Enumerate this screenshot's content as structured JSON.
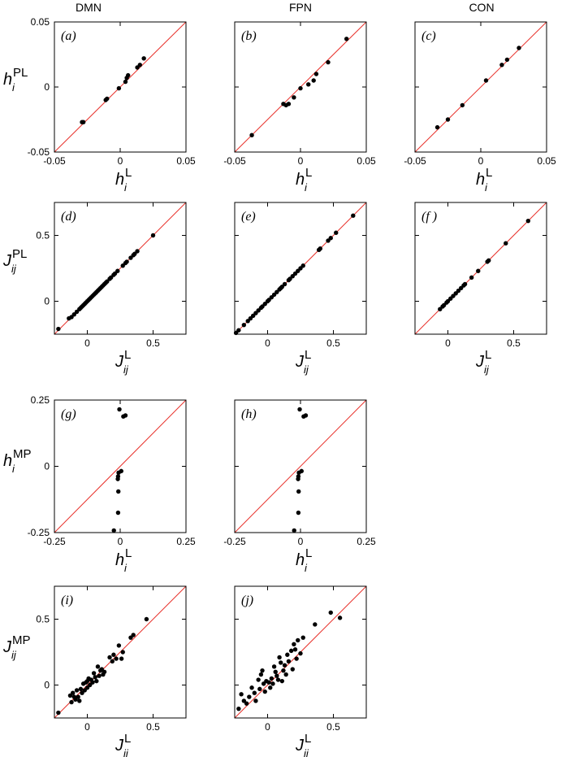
{
  "columns": [
    "DMN",
    "FPN",
    "CON"
  ],
  "axis_labels": {
    "h_L": {
      "base": "h",
      "sub": "i",
      "sup": "L"
    },
    "J_L": {
      "base": "J",
      "sub": "ij",
      "sup": "L"
    },
    "h_PL": {
      "base": "h",
      "sub": "i",
      "sup": "PL"
    },
    "J_PL": {
      "base": "J",
      "sub": "ij",
      "sup": "PL"
    },
    "h_MP": {
      "base": "h",
      "sub": "i",
      "sup": "MP"
    },
    "J_MP": {
      "base": "J",
      "sub": "ij",
      "sup": "MP"
    }
  },
  "colors": {
    "identity_line": "#e8302a",
    "points": "#000000",
    "frame": "#000000"
  },
  "chart_data": [
    {
      "id": "a",
      "panel_label": "(a)",
      "type": "scatter",
      "column": "DMN",
      "xlim": [
        -0.05,
        0.05
      ],
      "ylim": [
        -0.05,
        0.05
      ],
      "xticks": [
        -0.05,
        0,
        0.05
      ],
      "xtick_labels": [
        "-0.05",
        "0",
        "0.05"
      ],
      "yticks": [
        -0.05,
        0,
        0.05
      ],
      "ytick_labels": [
        "-0.05",
        "0",
        "0.05"
      ],
      "xlabel": "h_L",
      "ylabel": "h_PL",
      "show_xticks": true,
      "show_yticks": true,
      "identity_line": true,
      "points": [
        [
          -0.029,
          -0.027
        ],
        [
          -0.028,
          -0.027
        ],
        [
          -0.011,
          -0.01
        ],
        [
          -0.01,
          -0.009
        ],
        [
          -0.001,
          -0.001
        ],
        [
          0.004,
          0.004
        ],
        [
          0.005,
          0.007
        ],
        [
          0.006,
          0.009
        ],
        [
          0.013,
          0.015
        ],
        [
          0.015,
          0.017
        ],
        [
          0.018,
          0.022
        ]
      ]
    },
    {
      "id": "b",
      "panel_label": "(b)",
      "type": "scatter",
      "column": "FPN",
      "xlim": [
        -0.05,
        0.05
      ],
      "ylim": [
        -0.05,
        0.05
      ],
      "xticks": [
        -0.05,
        0,
        0.05
      ],
      "xtick_labels": [
        "-0.05",
        "0",
        "0.05"
      ],
      "xlabel": "h_L",
      "show_xticks": true,
      "show_yticks": false,
      "identity_line": true,
      "points": [
        [
          -0.037,
          -0.037
        ],
        [
          -0.013,
          -0.013
        ],
        [
          -0.011,
          -0.014
        ],
        [
          -0.009,
          -0.013
        ],
        [
          -0.005,
          -0.008
        ],
        [
          0.0,
          -0.001
        ],
        [
          0.006,
          0.002
        ],
        [
          0.01,
          0.005
        ],
        [
          0.012,
          0.01
        ],
        [
          0.021,
          0.019
        ],
        [
          0.035,
          0.037
        ]
      ]
    },
    {
      "id": "c",
      "panel_label": "(c)",
      "type": "scatter",
      "column": "CON",
      "xlim": [
        -0.05,
        0.05
      ],
      "ylim": [
        -0.05,
        0.05
      ],
      "xticks": [
        -0.05,
        0,
        0.05
      ],
      "xtick_labels": [
        "-0.05",
        "0",
        "0.05"
      ],
      "xlabel": "h_L",
      "show_xticks": true,
      "show_yticks": false,
      "identity_line": true,
      "points": [
        [
          -0.033,
          -0.031
        ],
        [
          -0.025,
          -0.025
        ],
        [
          -0.014,
          -0.014
        ],
        [
          0.004,
          0.005
        ],
        [
          0.016,
          0.017
        ],
        [
          0.02,
          0.021
        ],
        [
          0.029,
          0.03
        ]
      ]
    },
    {
      "id": "d",
      "panel_label": "(d)",
      "type": "scatter",
      "column": "DMN",
      "xlim": [
        -0.25,
        0.75
      ],
      "ylim": [
        -0.25,
        0.75
      ],
      "xticks": [
        0,
        0.5
      ],
      "xtick_labels": [
        "0",
        "0.5"
      ],
      "yticks": [
        0,
        0.5
      ],
      "ytick_labels": [
        "0",
        "0.5"
      ],
      "xlabel": "J_L",
      "ylabel": "J_PL",
      "show_xticks": true,
      "show_yticks": true,
      "identity_line": true,
      "points": [
        [
          -0.22,
          -0.21
        ],
        [
          -0.14,
          -0.13
        ],
        [
          -0.12,
          -0.12
        ],
        [
          -0.1,
          -0.1
        ],
        [
          -0.08,
          -0.08
        ],
        [
          -0.06,
          -0.06
        ],
        [
          -0.05,
          -0.05
        ],
        [
          -0.04,
          -0.04
        ],
        [
          -0.03,
          -0.03
        ],
        [
          -0.02,
          -0.02
        ],
        [
          -0.01,
          -0.01
        ],
        [
          0.0,
          0.0
        ],
        [
          0.01,
          0.01
        ],
        [
          0.02,
          0.02
        ],
        [
          0.03,
          0.03
        ],
        [
          0.04,
          0.04
        ],
        [
          0.05,
          0.05
        ],
        [
          0.06,
          0.06
        ],
        [
          0.07,
          0.07
        ],
        [
          0.08,
          0.08
        ],
        [
          0.09,
          0.09
        ],
        [
          0.1,
          0.1
        ],
        [
          0.11,
          0.11
        ],
        [
          0.12,
          0.12
        ],
        [
          0.13,
          0.13
        ],
        [
          0.14,
          0.14
        ],
        [
          0.15,
          0.15
        ],
        [
          0.17,
          0.17
        ],
        [
          0.18,
          0.18
        ],
        [
          0.2,
          0.2
        ],
        [
          0.21,
          0.21
        ],
        [
          0.23,
          0.23
        ],
        [
          0.27,
          0.27
        ],
        [
          0.29,
          0.29
        ],
        [
          0.3,
          0.3
        ],
        [
          0.33,
          0.33
        ],
        [
          0.35,
          0.35
        ],
        [
          0.36,
          0.36
        ],
        [
          0.38,
          0.38
        ],
        [
          0.5,
          0.5
        ]
      ]
    },
    {
      "id": "e",
      "panel_label": "(e)",
      "type": "scatter",
      "column": "FPN",
      "xlim": [
        -0.25,
        0.75
      ],
      "ylim": [
        -0.25,
        0.75
      ],
      "xticks": [
        0,
        0.5
      ],
      "xtick_labels": [
        "0",
        "0.5"
      ],
      "xlabel": "J_L",
      "show_xticks": true,
      "show_yticks": false,
      "identity_line": true,
      "points": [
        [
          -0.24,
          -0.24
        ],
        [
          -0.22,
          -0.22
        ],
        [
          -0.18,
          -0.18
        ],
        [
          -0.15,
          -0.15
        ],
        [
          -0.13,
          -0.13
        ],
        [
          -0.11,
          -0.11
        ],
        [
          -0.09,
          -0.09
        ],
        [
          -0.07,
          -0.07
        ],
        [
          -0.05,
          -0.05
        ],
        [
          -0.04,
          -0.04
        ],
        [
          -0.02,
          -0.02
        ],
        [
          0.0,
          0.0
        ],
        [
          0.01,
          0.01
        ],
        [
          0.03,
          0.03
        ],
        [
          0.05,
          0.05
        ],
        [
          0.07,
          0.07
        ],
        [
          0.09,
          0.09
        ],
        [
          0.1,
          0.1
        ],
        [
          0.11,
          0.11
        ],
        [
          0.13,
          0.13
        ],
        [
          0.16,
          0.16
        ],
        [
          0.17,
          0.17
        ],
        [
          0.19,
          0.19
        ],
        [
          0.21,
          0.21
        ],
        [
          0.23,
          0.23
        ],
        [
          0.25,
          0.25
        ],
        [
          0.27,
          0.27
        ],
        [
          0.39,
          0.39
        ],
        [
          0.4,
          0.4
        ],
        [
          0.46,
          0.46
        ],
        [
          0.48,
          0.48
        ],
        [
          0.52,
          0.52
        ],
        [
          0.65,
          0.65
        ]
      ]
    },
    {
      "id": "f",
      "panel_label": "(f )",
      "type": "scatter",
      "column": "CON",
      "xlim": [
        -0.25,
        0.75
      ],
      "ylim": [
        -0.25,
        0.75
      ],
      "xticks": [
        0,
        0.5
      ],
      "xtick_labels": [
        "0",
        "0.5"
      ],
      "xlabel": "J_L",
      "show_xticks": true,
      "show_yticks": false,
      "identity_line": true,
      "points": [
        [
          -0.06,
          -0.06
        ],
        [
          -0.04,
          -0.04
        ],
        [
          -0.03,
          -0.03
        ],
        [
          -0.01,
          -0.01
        ],
        [
          0.0,
          0.0
        ],
        [
          0.02,
          0.02
        ],
        [
          0.04,
          0.04
        ],
        [
          0.06,
          0.06
        ],
        [
          0.08,
          0.08
        ],
        [
          0.1,
          0.1
        ],
        [
          0.12,
          0.12
        ],
        [
          0.13,
          0.13
        ],
        [
          0.18,
          0.18
        ],
        [
          0.23,
          0.23
        ],
        [
          0.3,
          0.3
        ],
        [
          0.31,
          0.31
        ],
        [
          0.44,
          0.44
        ],
        [
          0.61,
          0.61
        ]
      ]
    },
    {
      "id": "g",
      "panel_label": "(g)",
      "type": "scatter",
      "column": "DMN",
      "xlim": [
        -0.25,
        0.25
      ],
      "ylim": [
        -0.25,
        0.25
      ],
      "xticks": [
        -0.25,
        0,
        0.25
      ],
      "xtick_labels": [
        "-0.25",
        "0",
        "0.25"
      ],
      "yticks": [
        -0.25,
        0,
        0.25
      ],
      "ytick_labels": [
        "-0.25",
        "0",
        "0.25"
      ],
      "xlabel": "h_L",
      "ylabel": "h_MP",
      "show_xticks": true,
      "show_yticks": true,
      "identity_line": true,
      "points": [
        [
          -0.003,
          0.215
        ],
        [
          0.012,
          0.188
        ],
        [
          0.02,
          0.192
        ],
        [
          -0.006,
          -0.024
        ],
        [
          0.004,
          -0.018
        ],
        [
          -0.008,
          -0.038
        ],
        [
          -0.009,
          -0.048
        ],
        [
          -0.007,
          -0.095
        ],
        [
          -0.008,
          -0.175
        ],
        [
          -0.024,
          -0.242
        ]
      ]
    },
    {
      "id": "h",
      "panel_label": "(h)",
      "type": "scatter",
      "column": "FPN",
      "xlim": [
        -0.25,
        0.25
      ],
      "ylim": [
        -0.25,
        0.25
      ],
      "xticks": [
        -0.25,
        0,
        0.25
      ],
      "xtick_labels": [
        "-0.25",
        "0",
        "0.25"
      ],
      "xlabel": "h_L",
      "show_xticks": true,
      "show_yticks": false,
      "identity_line": true,
      "points": [
        [
          -0.003,
          0.215
        ],
        [
          0.012,
          0.188
        ],
        [
          0.02,
          0.192
        ],
        [
          -0.006,
          -0.024
        ],
        [
          0.004,
          -0.018
        ],
        [
          -0.008,
          -0.038
        ],
        [
          -0.009,
          -0.048
        ],
        [
          -0.007,
          -0.095
        ],
        [
          -0.008,
          -0.175
        ],
        [
          -0.024,
          -0.242
        ]
      ]
    },
    {
      "id": "i",
      "panel_label": "(i)",
      "type": "scatter",
      "column": "DMN",
      "xlim": [
        -0.25,
        0.75
      ],
      "ylim": [
        -0.25,
        0.75
      ],
      "xticks": [
        0,
        0.5
      ],
      "xtick_labels": [
        "0",
        "0.5"
      ],
      "yticks": [
        0,
        0.5
      ],
      "ytick_labels": [
        "0",
        "0.5"
      ],
      "xlabel": "J_L",
      "ylabel": "J_MP",
      "show_xticks": true,
      "show_yticks": true,
      "identity_line": true,
      "points": [
        [
          -0.22,
          -0.21
        ],
        [
          -0.13,
          -0.08
        ],
        [
          -0.12,
          -0.13
        ],
        [
          -0.11,
          -0.06
        ],
        [
          -0.1,
          -0.09
        ],
        [
          -0.09,
          -0.11
        ],
        [
          -0.08,
          -0.04
        ],
        [
          -0.07,
          -0.09
        ],
        [
          -0.06,
          -0.12
        ],
        [
          -0.05,
          -0.03
        ],
        [
          -0.04,
          -0.06
        ],
        [
          -0.03,
          0.01
        ],
        [
          -0.02,
          -0.04
        ],
        [
          -0.01,
          0.02
        ],
        [
          0.0,
          0.03
        ],
        [
          0.0,
          -0.02
        ],
        [
          0.01,
          0.05
        ],
        [
          0.02,
          0.0
        ],
        [
          0.03,
          0.04
        ],
        [
          0.04,
          0.02
        ],
        [
          0.05,
          0.09
        ],
        [
          0.06,
          0.06
        ],
        [
          0.07,
          0.03
        ],
        [
          0.08,
          0.14
        ],
        [
          0.09,
          0.07
        ],
        [
          0.1,
          0.11
        ],
        [
          0.11,
          0.12
        ],
        [
          0.12,
          0.08
        ],
        [
          0.13,
          0.1
        ],
        [
          0.17,
          0.21
        ],
        [
          0.19,
          0.18
        ],
        [
          0.2,
          0.23
        ],
        [
          0.22,
          0.2
        ],
        [
          0.24,
          0.3
        ],
        [
          0.26,
          0.2
        ],
        [
          0.27,
          0.25
        ],
        [
          0.33,
          0.36
        ],
        [
          0.35,
          0.38
        ],
        [
          0.45,
          0.5
        ]
      ]
    },
    {
      "id": "j",
      "panel_label": "(j)",
      "type": "scatter",
      "column": "FPN",
      "xlim": [
        -0.25,
        0.75
      ],
      "ylim": [
        -0.25,
        0.75
      ],
      "xticks": [
        0,
        0.5
      ],
      "xtick_labels": [
        "0",
        "0.5"
      ],
      "xlabel": "J_L",
      "show_xticks": true,
      "show_yticks": false,
      "identity_line": true,
      "points": [
        [
          -0.22,
          -0.18
        ],
        [
          -0.2,
          -0.07
        ],
        [
          -0.18,
          -0.12
        ],
        [
          -0.16,
          -0.14
        ],
        [
          -0.14,
          -0.09
        ],
        [
          -0.12,
          -0.02
        ],
        [
          -0.1,
          -0.06
        ],
        [
          -0.09,
          -0.12
        ],
        [
          -0.07,
          0.04
        ],
        [
          -0.06,
          -0.03
        ],
        [
          -0.05,
          0.08
        ],
        [
          -0.04,
          0.11
        ],
        [
          -0.03,
          0.01
        ],
        [
          -0.02,
          -0.05
        ],
        [
          -0.01,
          0.03
        ],
        [
          0.01,
          0.02
        ],
        [
          0.02,
          -0.02
        ],
        [
          0.03,
          0.05
        ],
        [
          0.04,
          0.01
        ],
        [
          0.05,
          0.14
        ],
        [
          0.06,
          0.1
        ],
        [
          0.07,
          0.07
        ],
        [
          0.08,
          0.04
        ],
        [
          0.09,
          0.21
        ],
        [
          0.1,
          0.17
        ],
        [
          0.11,
          0.03
        ],
        [
          0.12,
          0.11
        ],
        [
          0.13,
          0.15
        ],
        [
          0.14,
          0.08
        ],
        [
          0.15,
          0.23
        ],
        [
          0.16,
          0.18
        ],
        [
          0.18,
          0.26
        ],
        [
          0.19,
          0.12
        ],
        [
          0.2,
          0.31
        ],
        [
          0.21,
          0.27
        ],
        [
          0.22,
          0.2
        ],
        [
          0.23,
          0.34
        ],
        [
          0.25,
          0.24
        ],
        [
          0.27,
          0.36
        ],
        [
          0.36,
          0.46
        ],
        [
          0.48,
          0.55
        ],
        [
          0.55,
          0.51
        ]
      ]
    }
  ]
}
